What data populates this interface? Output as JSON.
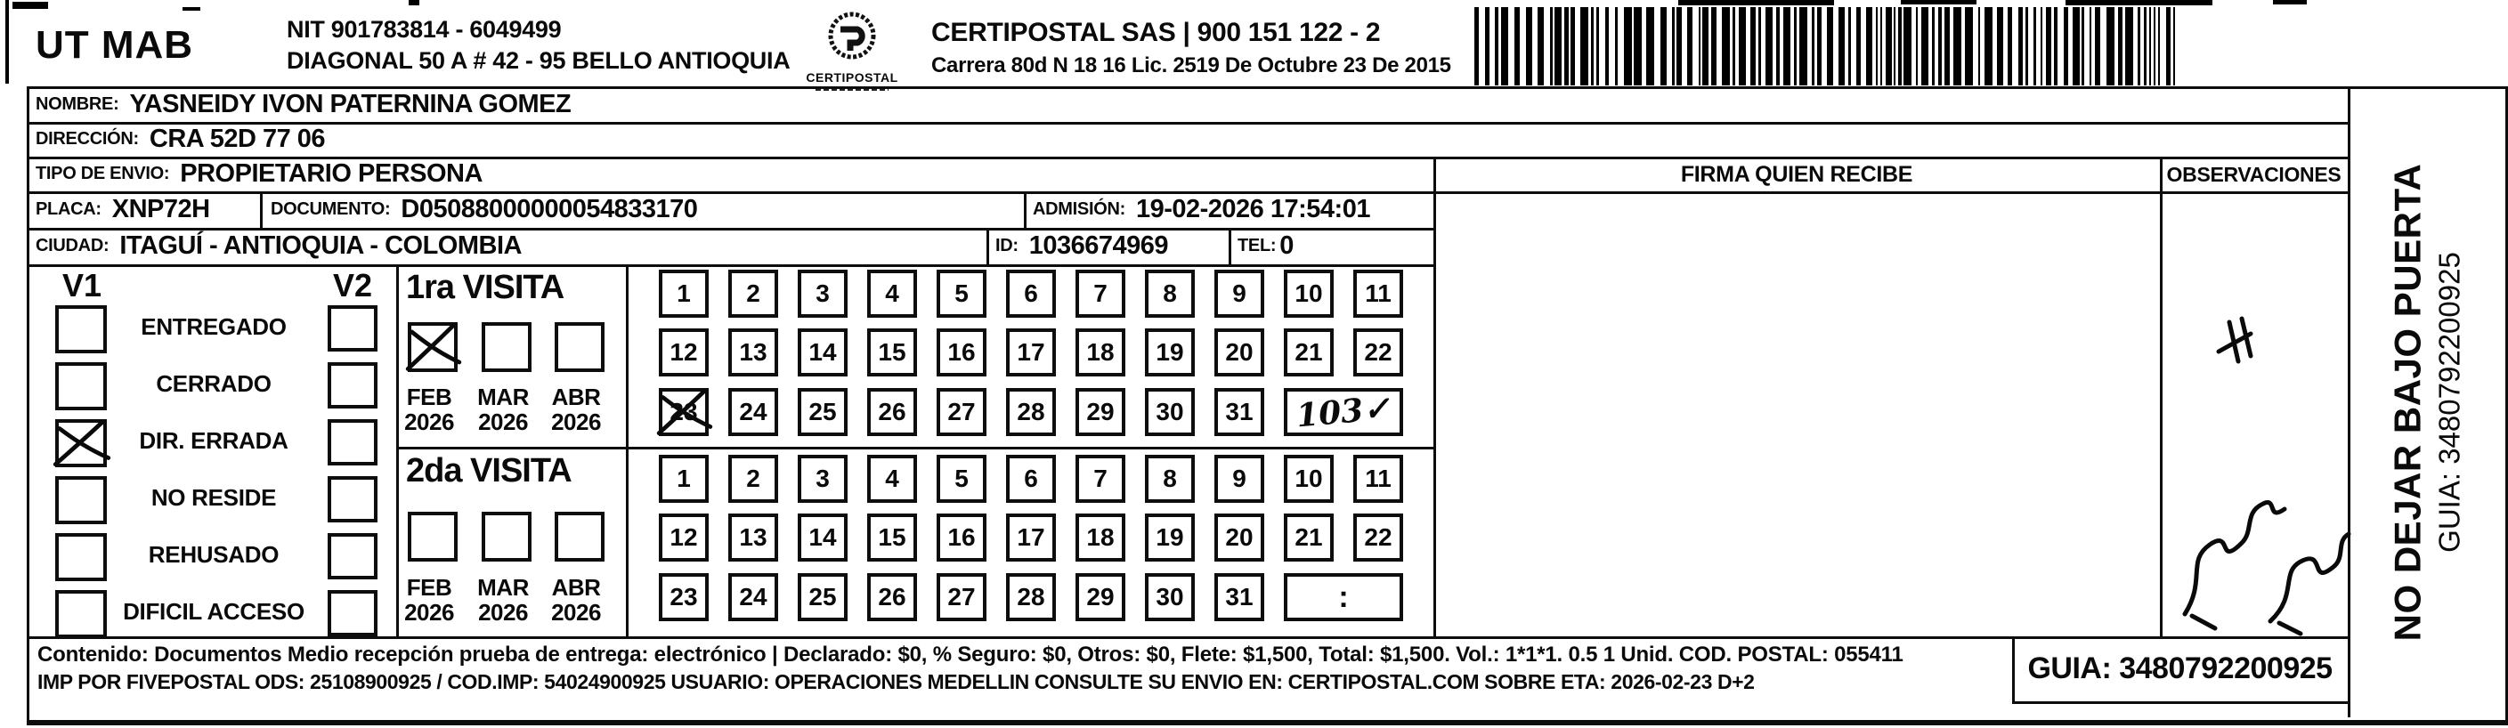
{
  "header": {
    "unit": "UT MAB",
    "nit": "NIT 901783814 - 6049499",
    "address": "DIAGONAL 50 A # 42 - 95  BELLO  ANTIOQUIA",
    "logo_caption": "CERTIPOSTAL",
    "company": "CERTIPOSTAL SAS | 900 151 122 - 2",
    "license": "Carrera 80d N 18 16  Lic. 2519 De Octubre 23 De 2015"
  },
  "shipment": {
    "nombre_label": "NOMBRE:",
    "nombre": "YASNEIDY IVON PATERNINA GOMEZ",
    "direccion_label": "DIRECCIÓN:",
    "direccion": "CRA 52D 77 06",
    "tipo_label": "TIPO DE ENVIO:",
    "tipo": "PROPIETARIO PERSONA",
    "placa_label": "PLACA:",
    "placa": "XNP72H",
    "documento_label": "DOCUMENTO:",
    "documento": "D05088000000054833170",
    "admision_label": "ADMISIÓN:",
    "admision": "19-02-2026 17:54:01",
    "ciudad_label": "CIUDAD:",
    "ciudad": "ITAGUÍ - ANTIOQUIA - COLOMBIA",
    "id_label": "ID:",
    "id": "1036674969",
    "tel_label": "TEL:",
    "tel": "0"
  },
  "status": {
    "col1": "V1",
    "col2": "V2",
    "options": [
      {
        "label": "ENTREGADO",
        "v1_checked": false,
        "v2_checked": false
      },
      {
        "label": "CERRADO",
        "v1_checked": false,
        "v2_checked": false
      },
      {
        "label": "DIR. ERRADA",
        "v1_checked": true,
        "v2_checked": false
      },
      {
        "label": "NO RESIDE",
        "v1_checked": false,
        "v2_checked": false
      },
      {
        "label": "REHUSADO",
        "v1_checked": false,
        "v2_checked": false
      },
      {
        "label": "DIFICIL ACCESO",
        "v1_checked": false,
        "v2_checked": false
      }
    ]
  },
  "visits": {
    "first": {
      "title": "1ra VISITA",
      "months": [
        {
          "month": "FEB",
          "year": "2026",
          "checked": true
        },
        {
          "month": "MAR",
          "year": "2026",
          "checked": false
        },
        {
          "month": "ABR",
          "year": "2026",
          "checked": false
        }
      ],
      "day_rows": [
        [
          1,
          2,
          3,
          4,
          5,
          6,
          7,
          8,
          9,
          10,
          11
        ],
        [
          12,
          13,
          14,
          15,
          16,
          17,
          18,
          19,
          20,
          21,
          22
        ],
        [
          23,
          24,
          25,
          26,
          27,
          28,
          29,
          30,
          31
        ]
      ],
      "crossed_day": 23,
      "note": "103✓"
    },
    "second": {
      "title": "2da VISITA",
      "months": [
        {
          "month": "FEB",
          "year": "2026",
          "checked": false
        },
        {
          "month": "MAR",
          "year": "2026",
          "checked": false
        },
        {
          "month": "ABR",
          "year": "2026",
          "checked": false
        }
      ],
      "day_rows": [
        [
          1,
          2,
          3,
          4,
          5,
          6,
          7,
          8,
          9,
          10,
          11
        ],
        [
          12,
          13,
          14,
          15,
          16,
          17,
          18,
          19,
          20,
          21,
          22
        ],
        [
          23,
          24,
          25,
          26,
          27,
          28,
          29,
          30,
          31
        ]
      ],
      "crossed_day": null,
      "note": ":"
    }
  },
  "signature": {
    "header": "FIRMA QUIEN RECIBE"
  },
  "observaciones": {
    "header": "OBSERVACIONES"
  },
  "side_note": {
    "line1": "NO DEJAR BAJO PUERTA",
    "line2": "GUIA: 3480792200925"
  },
  "footer": {
    "line1": "Contenido: Documentos Medio recepción prueba de entrega: electrónico | Declarado: $0, % Seguro: $0, Otros: $0, Flete: $1,500, Total: $1,500. Vol.: 1*1*1. 0.5  1 Unid. COD. POSTAL: 055411",
    "line2": "IMP POR FIVEPOSTAL ODS: 25108900925 / COD.IMP: 54024900925 USUARIO: OPERACIONES MEDELLIN CONSULTE SU ENVIO EN: CERTIPOSTAL.COM SOBRE ETA: 2026-02-23 D+2",
    "guia": "GUIA: 3480792200925"
  },
  "colors": {
    "ink": "#0d0d0d",
    "paper": "#ffffff"
  }
}
